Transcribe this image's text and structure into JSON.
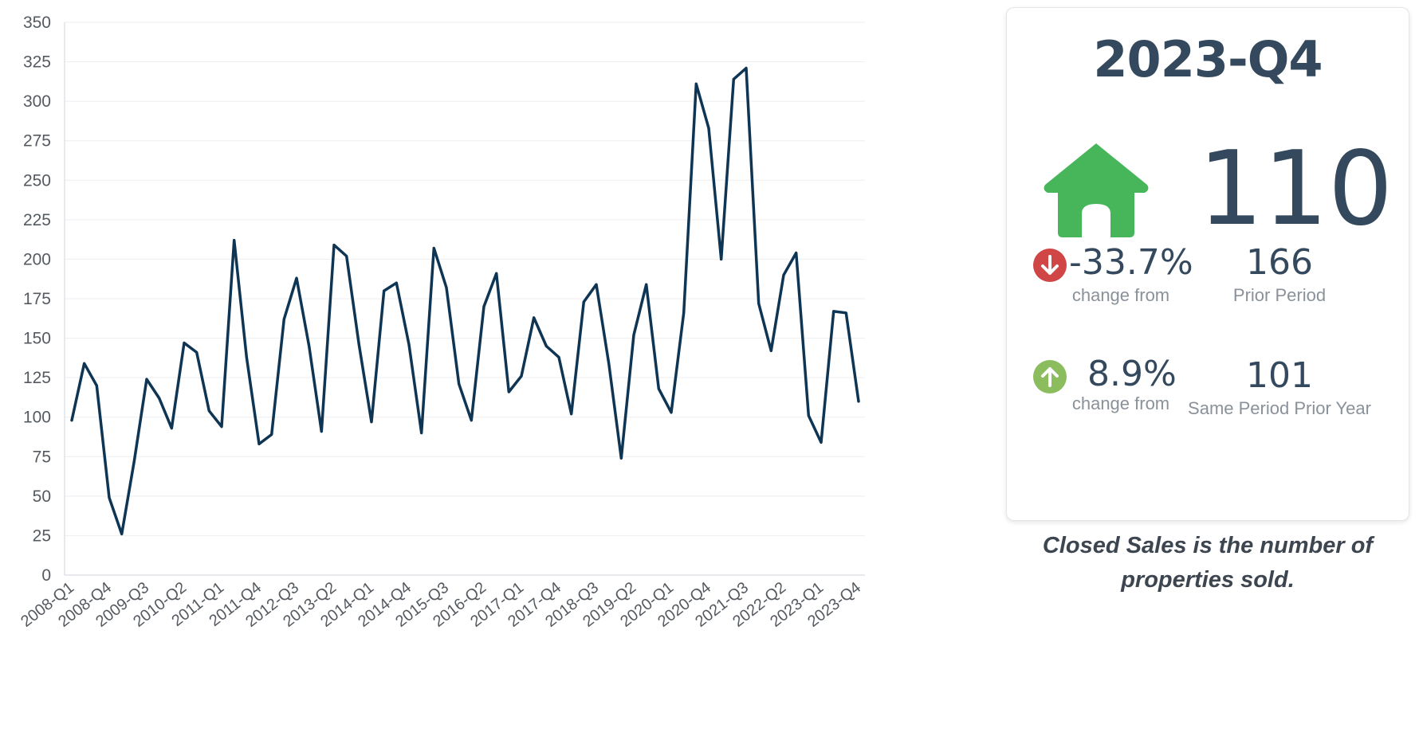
{
  "chart_data": {
    "type": "line",
    "title": "",
    "xlabel": "",
    "ylabel": "",
    "ylim": [
      0,
      350
    ],
    "yticks": [
      0,
      25,
      50,
      75,
      100,
      125,
      150,
      175,
      200,
      225,
      250,
      275,
      300,
      325,
      350
    ],
    "line_color": "#0f3554",
    "grid": "horizontal",
    "x_tick_labels": [
      "2008-Q1",
      "2008-Q4",
      "2009-Q3",
      "2010-Q2",
      "2011-Q1",
      "2011-Q4",
      "2012-Q3",
      "2013-Q2",
      "2014-Q1",
      "2014-Q4",
      "2015-Q3",
      "2016-Q2",
      "2017-Q1",
      "2017-Q4",
      "2018-Q3",
      "2019-Q2",
      "2020-Q1",
      "2020-Q4",
      "2021-Q3",
      "2022-Q2",
      "2023-Q1",
      "2023-Q4"
    ],
    "categories": [
      "2008-Q1",
      "2008-Q2",
      "2008-Q3",
      "2008-Q4",
      "2009-Q1",
      "2009-Q2",
      "2009-Q3",
      "2009-Q4",
      "2010-Q1",
      "2010-Q2",
      "2010-Q3",
      "2010-Q4",
      "2011-Q1",
      "2011-Q2",
      "2011-Q3",
      "2011-Q4",
      "2012-Q1",
      "2012-Q2",
      "2012-Q3",
      "2012-Q4",
      "2013-Q1",
      "2013-Q2",
      "2013-Q3",
      "2013-Q4",
      "2014-Q1",
      "2014-Q2",
      "2014-Q3",
      "2014-Q4",
      "2015-Q1",
      "2015-Q2",
      "2015-Q3",
      "2015-Q4",
      "2016-Q1",
      "2016-Q2",
      "2016-Q3",
      "2016-Q4",
      "2017-Q1",
      "2017-Q2",
      "2017-Q3",
      "2017-Q4",
      "2018-Q1",
      "2018-Q2",
      "2018-Q3",
      "2018-Q4",
      "2019-Q1",
      "2019-Q2",
      "2019-Q3",
      "2019-Q4",
      "2020-Q1",
      "2020-Q2",
      "2020-Q3",
      "2020-Q4",
      "2021-Q1",
      "2021-Q2",
      "2021-Q3",
      "2021-Q4",
      "2022-Q1",
      "2022-Q2",
      "2022-Q3",
      "2022-Q4",
      "2023-Q1",
      "2023-Q2",
      "2023-Q3",
      "2023-Q4"
    ],
    "values": [
      98,
      134,
      120,
      49,
      26,
      72,
      124,
      112,
      93,
      147,
      141,
      104,
      94,
      212,
      138,
      83,
      89,
      162,
      188,
      145,
      91,
      209,
      202,
      146,
      97,
      180,
      185,
      146,
      90,
      207,
      182,
      121,
      98,
      170,
      191,
      116,
      126,
      163,
      145,
      138,
      102,
      173,
      184,
      134,
      74,
      152,
      184,
      118,
      103,
      166,
      311,
      283,
      200,
      314,
      321,
      172,
      142,
      190,
      204,
      101,
      84,
      167,
      166,
      110
    ]
  },
  "summary": {
    "period": "2023-Q4",
    "value": "110",
    "icon": "house-icon",
    "icon_color": "#47b55a",
    "prior_period": {
      "direction": "down",
      "icon": "arrow-down-icon",
      "color": "#d04545",
      "change": "-33.7%",
      "change_label": "change from",
      "value": "166",
      "value_label": "Prior Period"
    },
    "prior_year": {
      "direction": "up",
      "icon": "arrow-up-icon",
      "color": "#8bbd5f",
      "change": "8.9%",
      "change_label": "change from",
      "value": "101",
      "value_label": "Same Period Prior Year"
    }
  },
  "note": "Closed Sales is the number of properties sold."
}
